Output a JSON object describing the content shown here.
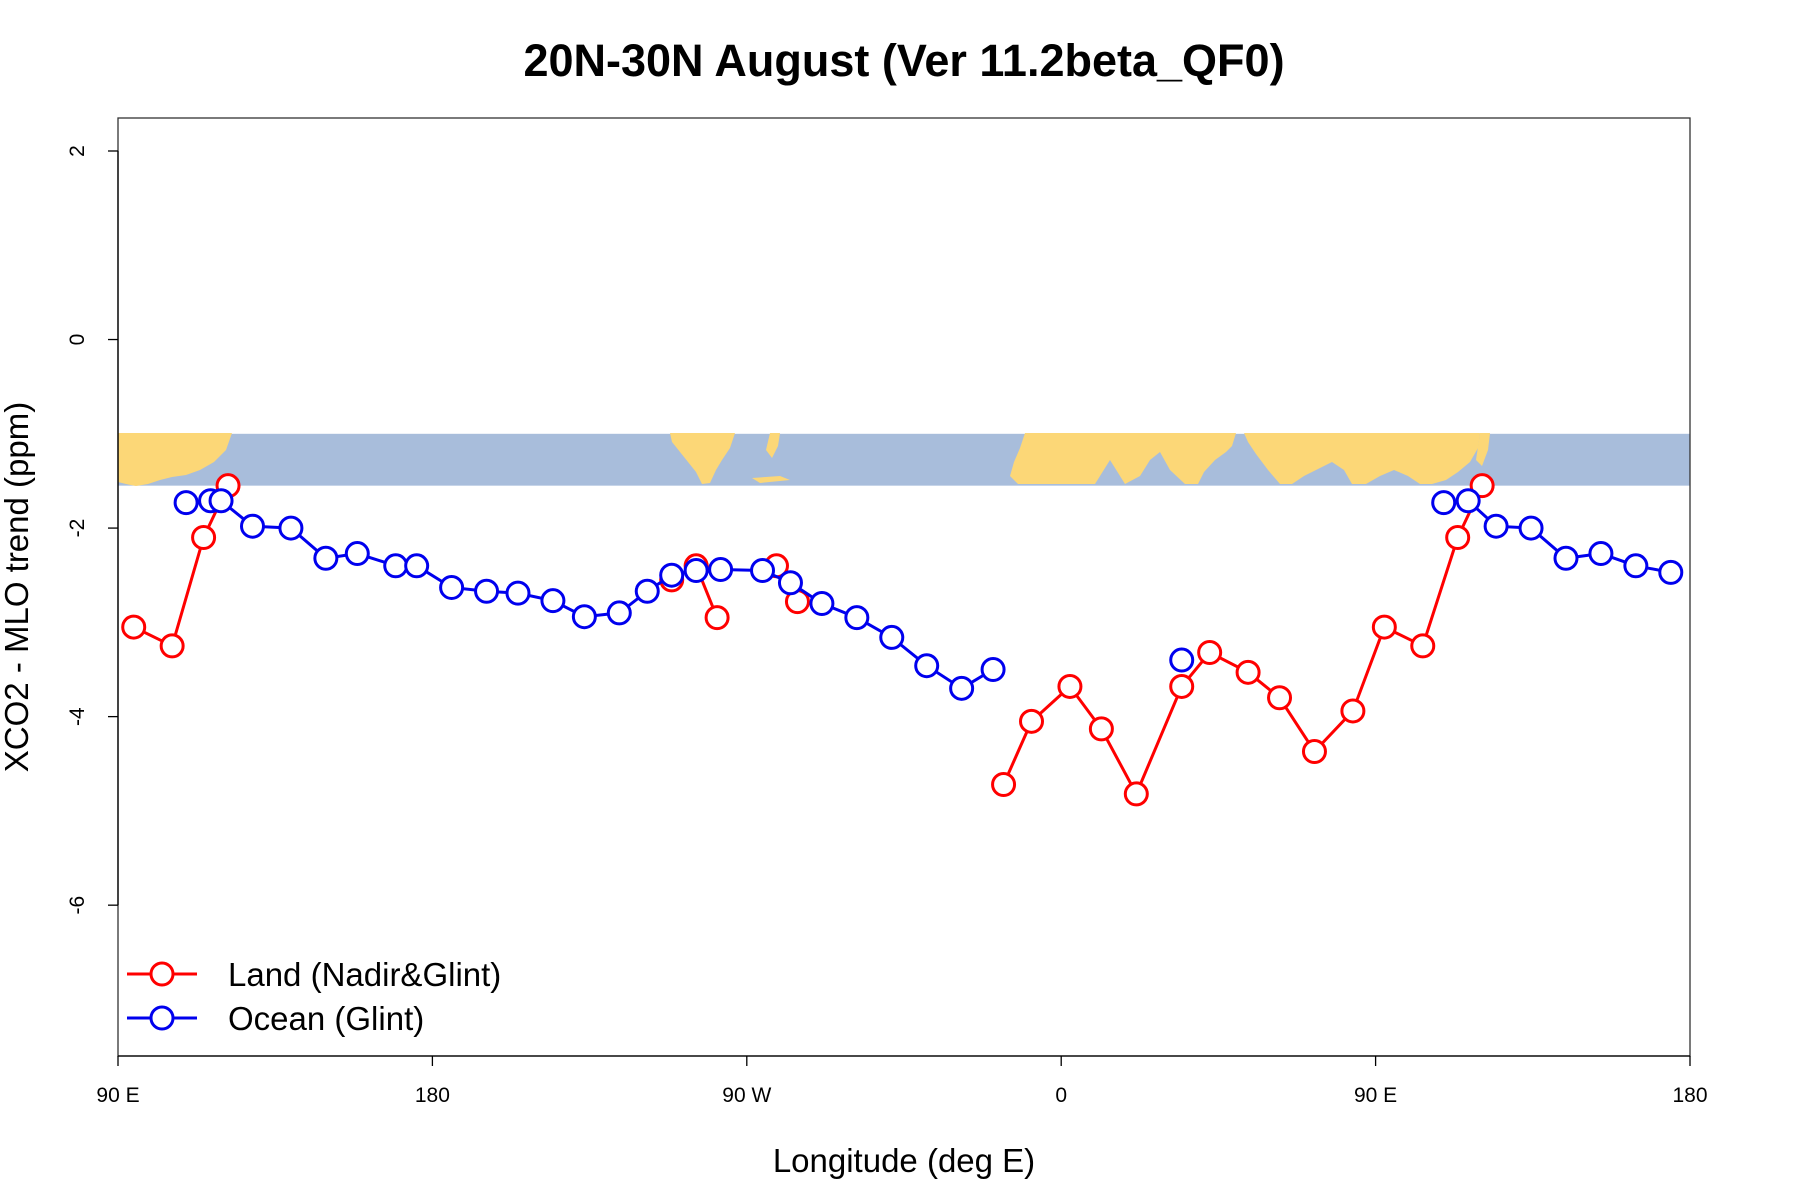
{
  "chart_data": {
    "type": "line",
    "title": "20N-30N August (Ver 11.2beta_QF0)",
    "xlabel": "Longitude (deg E)",
    "ylabel": "XCO2 - MLO trend (ppm)",
    "xlim": [
      90,
      540
    ],
    "ylim": [
      -7.6,
      2.35
    ],
    "x_ticks": [
      90,
      180,
      270,
      360,
      450,
      540
    ],
    "x_tick_labels": [
      "90 E",
      "180",
      "90 W",
      "0",
      "90 E",
      "180"
    ],
    "y_ticks": [
      2,
      0,
      -2,
      -4,
      -6
    ],
    "y_tick_labels": [
      "2",
      "0",
      "-2",
      "-4",
      "-6"
    ],
    "land_strip": {
      "y_range": [
        -1.55,
        -1.0
      ],
      "ocean_color": "#a8bddb",
      "land_color": "#fcd777"
    },
    "legend_position": "bottom-left",
    "series": [
      {
        "name": "Land (Nadir&Glint)",
        "color": "#ff0000",
        "segments": [
          {
            "x": [
              94.5,
              105.5,
              114.5,
              121.5
            ],
            "y": [
              -3.05,
              -3.25,
              -2.1,
              -1.55
            ]
          },
          {
            "x": [
              248.5,
              255.5,
              261.5
            ],
            "y": [
              -2.55,
              -2.4,
              -2.95
            ]
          },
          {
            "x": [
              278.5,
              284.5
            ],
            "y": [
              -2.4,
              -2.78
            ]
          },
          {
            "x": [
              343.5,
              351.5,
              362.5,
              371.5,
              381.5,
              394.5,
              402.5,
              413.5,
              422.5,
              432.5,
              443.5,
              452.5,
              463.5,
              473.5,
              480.5,
              496.5
            ],
            "y": [
              -4.72,
              -4.05,
              -3.68,
              -4.13,
              -4.82,
              -3.68,
              -3.32,
              -3.53,
              -3.8,
              -4.37,
              -3.94,
              -3.05,
              -3.25,
              -2.1,
              -1.55,
              null
            ]
          }
        ],
        "tail": {
          "x": [
            463.5,
            473.5,
            480.5
          ],
          "y": [
            -3.25,
            -2.1,
            -1.55
          ]
        }
      },
      {
        "name": "Ocean (Glint)",
        "color": "#0000ee",
        "segments": [
          {
            "x": [
              109.5,
              116.5,
              119.5,
              128.5,
              139.5,
              149.5,
              158.5,
              169.5,
              175.5,
              185.5,
              195.5,
              204.5,
              214.5,
              223.5,
              233.5,
              241.5,
              248.5,
              255.5,
              262.5,
              274.5,
              282.5,
              291.5,
              301.5,
              311.5,
              321.5,
              331.5,
              340.5
            ],
            "y": [
              -1.73,
              -1.71,
              -1.71,
              -1.98,
              -2.0,
              -2.32,
              -2.27,
              -2.4,
              -2.4,
              -2.63,
              -2.67,
              -2.69,
              -2.77,
              -2.94,
              -2.9,
              -2.67,
              -2.5,
              -2.45,
              -2.44,
              -2.45,
              -2.58,
              -2.8,
              -2.95,
              -3.16,
              -3.46,
              -3.7,
              -3.5
            ]
          },
          {
            "x": [
              394.5
            ],
            "y": [
              -3.4
            ]
          },
          {
            "x": [
              469.5,
              476.5,
              484.5,
              494.5,
              504.5,
              514.5,
              524.5,
              534.5
            ],
            "y": [
              -1.73,
              -1.71,
              -1.98,
              -2.0,
              -2.32,
              -2.27,
              -2.4,
              -2.47
            ]
          }
        ]
      }
    ]
  }
}
